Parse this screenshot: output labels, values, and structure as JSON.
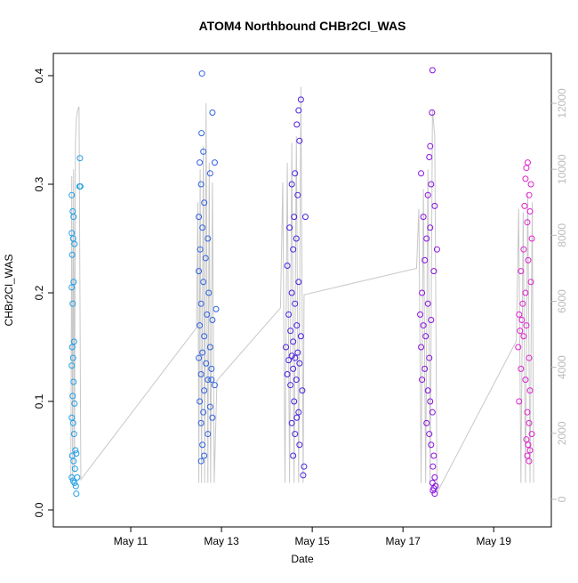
{
  "chart_data": {
    "type": "scatter",
    "title": "ATOM4 Northbound CHBr2Cl_WAS",
    "xlabel": "Date",
    "ylabel": "CHBr2Cl_WAS",
    "xlim": [
      9.294,
      20.27
    ],
    "xticks": [
      {
        "value": 11,
        "label": "May 11"
      },
      {
        "value": 13,
        "label": "May 13"
      },
      {
        "value": 15,
        "label": "May 15"
      },
      {
        "value": 17,
        "label": "May 17"
      },
      {
        "value": 19,
        "label": "May 19"
      }
    ],
    "ylim": [
      -0.0156,
      0.4205
    ],
    "yticks": [
      {
        "value": 0,
        "label": "0.0"
      },
      0.1,
      0.2,
      0.3,
      0.4
    ],
    "y2lim": [
      -836,
      13511
    ],
    "y2ticks": [
      0,
      2000,
      4000,
      6000,
      8000,
      10000,
      12000
    ],
    "series": [
      {
        "color": "#1ea0e8",
        "x": [
          9.7,
          9.72,
          9.74,
          9.7,
          9.73,
          9.76,
          9.71,
          9.74,
          9.7,
          9.72,
          9.75,
          9.71,
          9.73,
          9.7,
          9.74,
          9.72,
          9.76,
          9.7,
          9.73,
          9.75,
          9.78,
          9.71,
          9.74,
          9.77,
          9.7,
          9.73,
          9.76,
          9.79,
          9.8,
          9.88,
          9.87,
          9.89,
          9.8,
          9.82
        ],
        "values": [
          0.29,
          0.275,
          0.27,
          0.255,
          0.25,
          0.245,
          0.235,
          0.21,
          0.205,
          0.19,
          0.155,
          0.15,
          0.14,
          0.133,
          0.118,
          0.105,
          0.098,
          0.085,
          0.08,
          0.07,
          0.055,
          0.05,
          0.045,
          0.038,
          0.03,
          0.027,
          0.025,
          0.022,
          0.015,
          0.324,
          0.298,
          0.298,
          0.052,
          0.03
        ]
      },
      {
        "color": "#2f62e0",
        "x": [
          12.57,
          12.8,
          12.56,
          12.6,
          12.52,
          12.75,
          12.55,
          12.62,
          12.5,
          12.58,
          12.7,
          12.53,
          12.65,
          12.5,
          12.6,
          12.72,
          12.55,
          12.68,
          12.8,
          12.52,
          12.62,
          12.75,
          12.58,
          12.5,
          12.66,
          12.78,
          12.55,
          12.7,
          12.85,
          12.62,
          12.52,
          12.75,
          12.6,
          12.8,
          12.55,
          12.7,
          12.58,
          12.62,
          12.55,
          12.88,
          12.85,
          12.78
        ],
        "values": [
          0.402,
          0.366,
          0.347,
          0.33,
          0.32,
          0.31,
          0.3,
          0.283,
          0.27,
          0.26,
          0.25,
          0.24,
          0.232,
          0.22,
          0.21,
          0.2,
          0.19,
          0.18,
          0.175,
          0.17,
          0.16,
          0.15,
          0.145,
          0.14,
          0.135,
          0.13,
          0.125,
          0.12,
          0.115,
          0.11,
          0.1,
          0.095,
          0.09,
          0.085,
          0.08,
          0.07,
          0.06,
          0.05,
          0.045,
          0.185,
          0.32,
          0.12
        ]
      },
      {
        "color": "#4a20e0",
        "x": [
          14.75,
          14.7,
          14.66,
          14.72,
          14.62,
          14.55,
          14.68,
          14.6,
          14.5,
          14.65,
          14.58,
          14.45,
          14.7,
          14.55,
          14.62,
          14.48,
          14.66,
          14.52,
          14.75,
          14.58,
          14.42,
          14.68,
          14.55,
          14.62,
          14.48,
          14.72,
          14.58,
          14.45,
          14.65,
          14.52,
          14.78,
          14.6,
          14.7,
          14.66,
          14.55,
          14.62,
          14.72,
          14.58,
          14.82,
          14.8,
          14.85
        ],
        "values": [
          0.378,
          0.368,
          0.355,
          0.34,
          0.31,
          0.3,
          0.29,
          0.27,
          0.26,
          0.25,
          0.24,
          0.225,
          0.21,
          0.2,
          0.19,
          0.18,
          0.17,
          0.165,
          0.16,
          0.155,
          0.15,
          0.145,
          0.142,
          0.14,
          0.138,
          0.135,
          0.13,
          0.125,
          0.12,
          0.115,
          0.11,
          0.1,
          0.09,
          0.085,
          0.08,
          0.07,
          0.06,
          0.05,
          0.04,
          0.032,
          0.27
        ]
      },
      {
        "color": "#8a10e0",
        "x": [
          17.65,
          17.64,
          17.6,
          17.58,
          17.4,
          17.62,
          17.55,
          17.7,
          17.45,
          17.6,
          17.52,
          17.75,
          17.48,
          17.68,
          17.42,
          17.55,
          17.38,
          17.62,
          17.45,
          17.5,
          17.4,
          17.58,
          17.48,
          17.42,
          17.55,
          17.6,
          17.65,
          17.52,
          17.58,
          17.62,
          17.68,
          17.66,
          17.7,
          17.68,
          17.66,
          17.7,
          17.72,
          17.65
        ],
        "values": [
          0.405,
          0.366,
          0.335,
          0.325,
          0.31,
          0.3,
          0.29,
          0.28,
          0.27,
          0.26,
          0.25,
          0.24,
          0.23,
          0.22,
          0.2,
          0.19,
          0.18,
          0.175,
          0.17,
          0.16,
          0.15,
          0.14,
          0.13,
          0.12,
          0.11,
          0.1,
          0.09,
          0.08,
          0.07,
          0.06,
          0.05,
          0.04,
          0.03,
          0.02,
          0.018,
          0.015,
          0.022,
          0.025
        ]
      },
      {
        "color": "#e020d0",
        "x": [
          19.75,
          19.72,
          19.7,
          19.82,
          19.78,
          19.68,
          19.8,
          19.74,
          19.84,
          19.66,
          19.76,
          19.6,
          19.82,
          19.7,
          19.64,
          19.56,
          19.62,
          19.72,
          19.58,
          19.66,
          19.54,
          19.78,
          19.6,
          19.7,
          19.8,
          19.56,
          19.74,
          19.78,
          19.84,
          19.72,
          19.76,
          19.8,
          19.74,
          19.78
        ],
        "values": [
          0.32,
          0.315,
          0.305,
          0.3,
          0.29,
          0.28,
          0.275,
          0.265,
          0.25,
          0.24,
          0.23,
          0.22,
          0.21,
          0.2,
          0.19,
          0.18,
          0.175,
          0.17,
          0.165,
          0.16,
          0.15,
          0.14,
          0.13,
          0.12,
          0.11,
          0.1,
          0.09,
          0.08,
          0.07,
          0.065,
          0.06,
          0.055,
          0.05,
          0.045
        ]
      },
      {
        "color": "#c8c8c8",
        "axis": "y2",
        "line": true,
        "x": [
          9.68,
          9.7,
          9.72,
          9.74,
          9.76,
          9.78,
          9.8,
          9.83,
          9.86,
          9.9,
          12.45,
          12.48,
          12.5,
          12.53,
          12.56,
          12.6,
          12.63,
          12.66,
          12.7,
          12.73,
          12.76,
          12.8,
          12.84,
          12.9,
          14.3,
          14.35,
          14.4,
          14.45,
          14.5,
          14.55,
          14.6,
          14.65,
          14.7,
          14.75,
          14.8,
          14.82,
          17.3,
          17.35,
          17.4,
          17.45,
          17.5,
          17.55,
          17.6,
          17.65,
          17.7,
          17.75,
          19.5,
          19.55,
          19.6,
          19.65,
          19.7,
          19.75,
          19.8,
          19.85,
          19.88
        ],
        "values": [
          500,
          9800,
          600,
          10000,
          800,
          10800,
          11500,
          11800,
          11900,
          600,
          5200,
          9000,
          500,
          10000,
          500,
          10700,
          500,
          12000,
          500,
          10200,
          500,
          9600,
          500,
          3600,
          5800,
          9600,
          500,
          10200,
          500,
          10800,
          500,
          11000,
          500,
          12500,
          500,
          6200,
          7000,
          8800,
          500,
          9400,
          500,
          10000,
          500,
          11800,
          11000,
          200,
          4800,
          8800,
          500,
          8700,
          500,
          9300,
          500,
          9000,
          500
        ]
      }
    ]
  }
}
